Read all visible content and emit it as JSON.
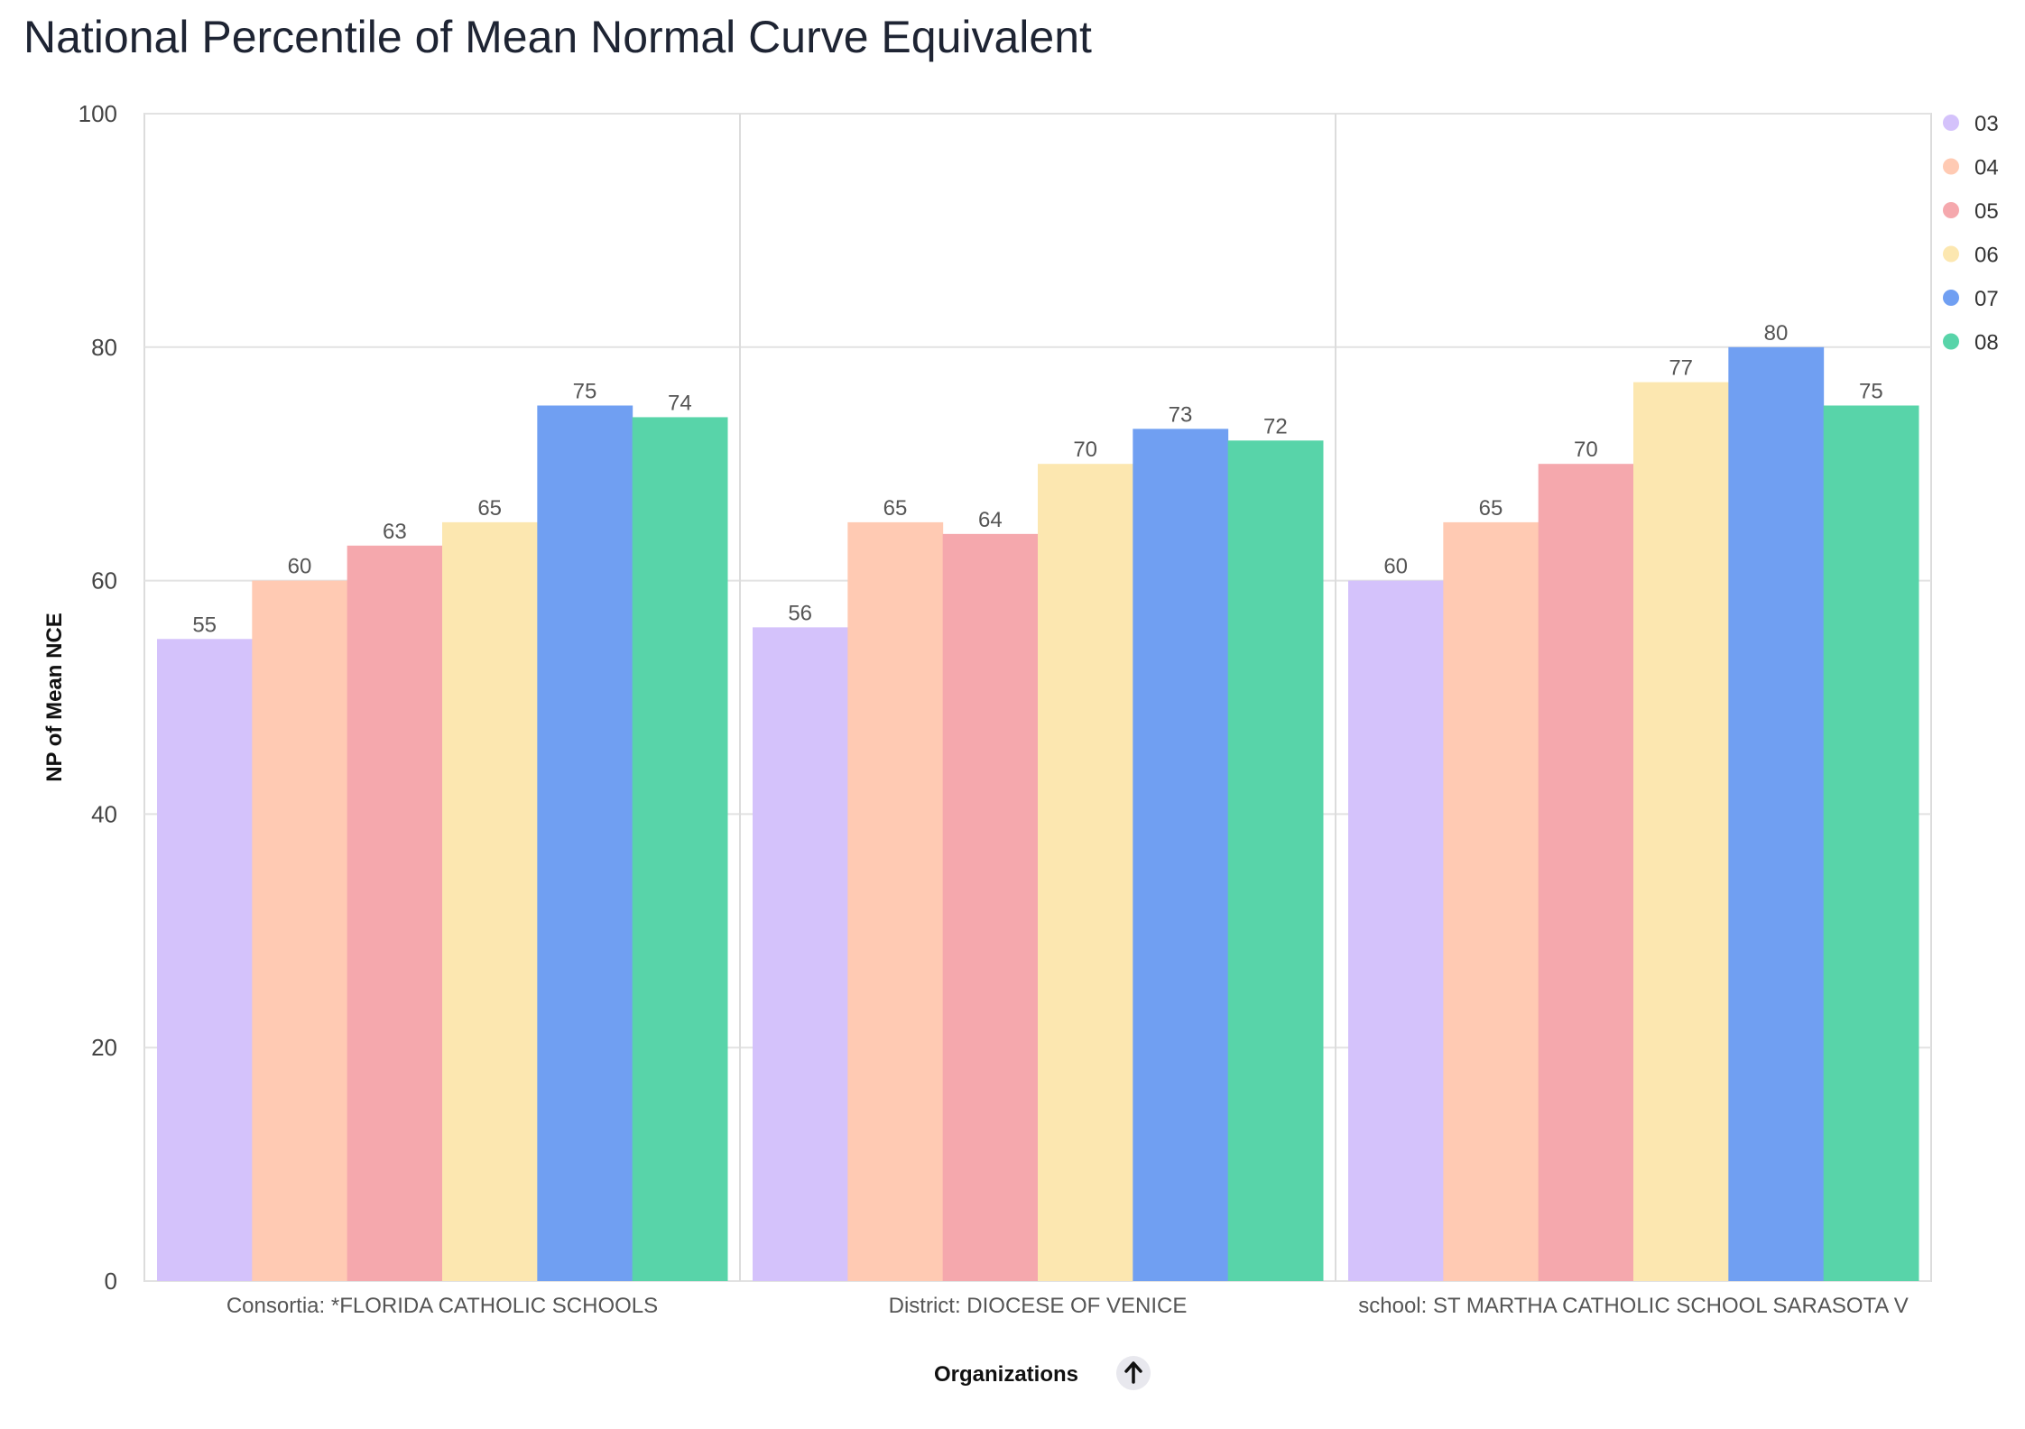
{
  "title": "National Percentile of Mean Normal Curve Equivalent",
  "chart_data": {
    "type": "bar",
    "title": "National Percentile of Mean Normal Curve Equivalent",
    "xlabel": "Organizations",
    "ylabel": "NP of Mean NCE",
    "ylim": [
      0,
      100
    ],
    "yticks": [
      0,
      20,
      40,
      60,
      80,
      100
    ],
    "grid": true,
    "legend_position": "right",
    "categories": [
      "Consortia: *FLORIDA CATHOLIC SCHOOLS",
      "District: DIOCESE OF VENICE",
      "school: ST MARTHA CATHOLIC SCHOOL SARASOTA V"
    ],
    "series": [
      {
        "name": "03",
        "color": "#d4c2fb",
        "values": [
          55,
          56,
          60
        ]
      },
      {
        "name": "04",
        "color": "#ffcab3",
        "values": [
          60,
          65,
          65
        ]
      },
      {
        "name": "05",
        "color": "#f5a8ad",
        "values": [
          63,
          64,
          70
        ]
      },
      {
        "name": "06",
        "color": "#fce7b0",
        "values": [
          65,
          70,
          77
        ]
      },
      {
        "name": "07",
        "color": "#709ff2",
        "values": [
          75,
          73,
          80
        ]
      },
      {
        "name": "08",
        "color": "#58d4a9",
        "values": [
          74,
          72,
          75
        ]
      }
    ]
  },
  "sort_icon": "arrow-up-icon"
}
